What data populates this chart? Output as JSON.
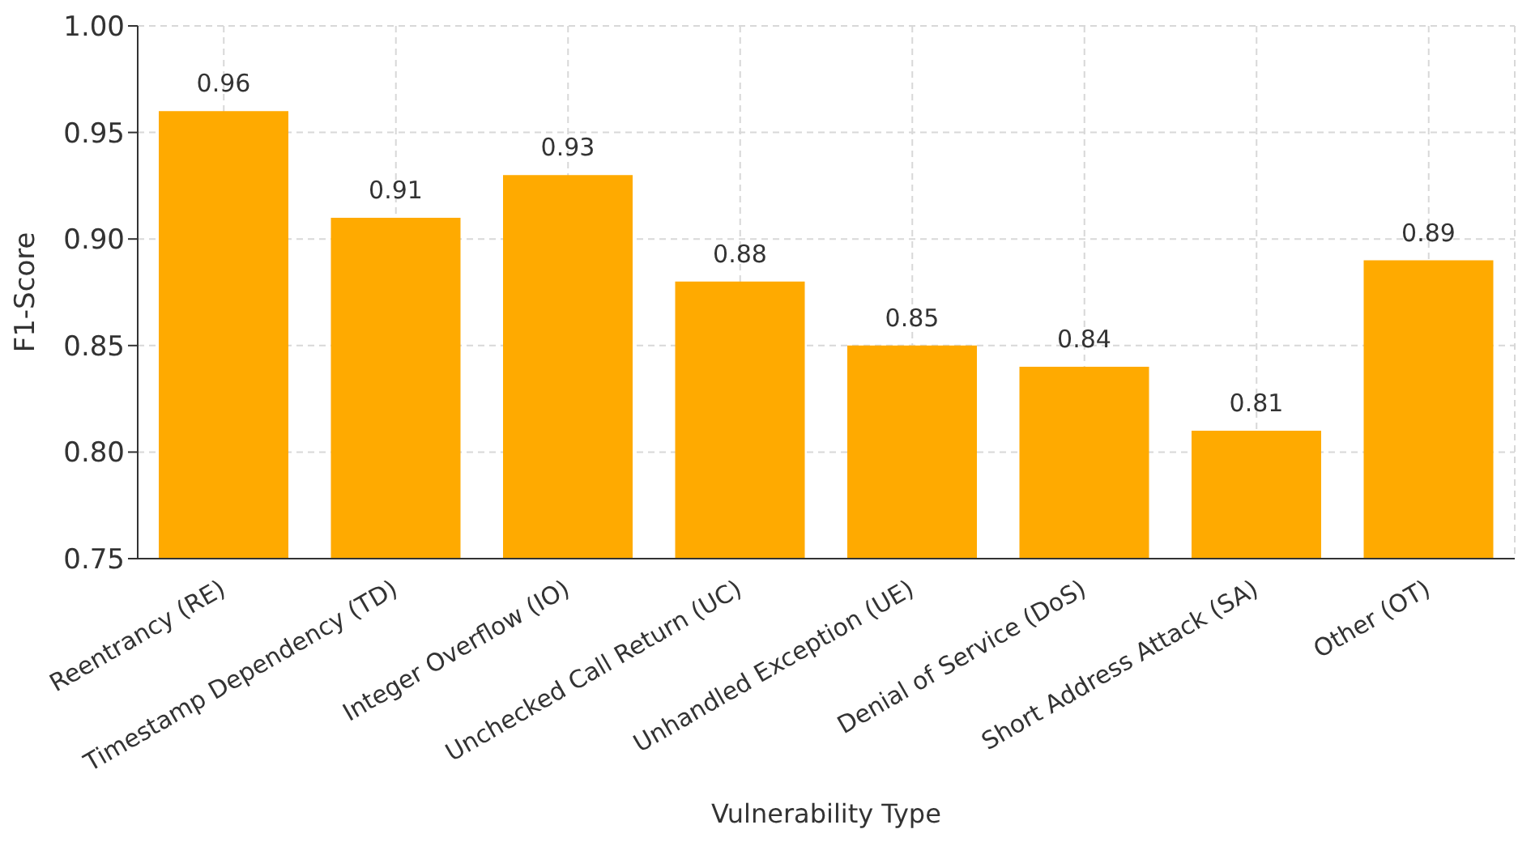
{
  "chart_data": {
    "type": "bar",
    "xlabel": "Vulnerability Type",
    "ylabel": "F1-Score",
    "categories": [
      "Reentrancy (RE)",
      "Timestamp Dependency (TD)",
      "Integer Overflow (IO)",
      "Unchecked Call Return (UC)",
      "Unhandled Exception (UE)",
      "Denial of Service (DoS)",
      "Short Address Attack (SA)",
      "Other (OT)"
    ],
    "values": [
      0.96,
      0.91,
      0.93,
      0.88,
      0.85,
      0.84,
      0.81,
      0.89
    ],
    "color": "#ffaa00",
    "ylim": [
      0.75,
      1.0
    ],
    "yticks": [
      0.75,
      {
        "value": 0.8,
        "label": "0.80"
      },
      0.85,
      {
        "value": 0.9,
        "label": "0.90"
      },
      0.95,
      {
        "value": 1.0,
        "label": "1.00"
      }
    ],
    "grid": true,
    "data_labels": true
  }
}
